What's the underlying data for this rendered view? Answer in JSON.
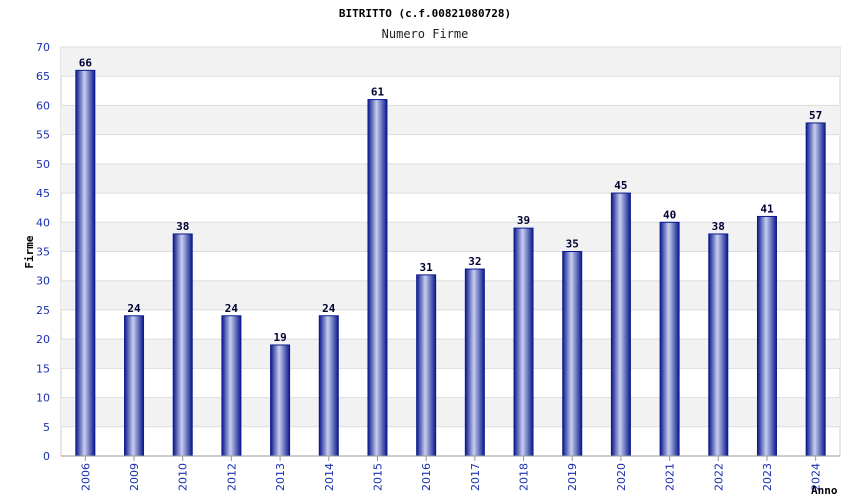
{
  "chart_data": {
    "type": "bar",
    "title": "BITRITTO (c.f.00821080728)",
    "subtitle": "Numero Firme",
    "xlabel": "Anno",
    "ylabel": "Firme",
    "ylim": [
      0,
      70
    ],
    "ytick_step": 5,
    "grid": true,
    "categories": [
      "2006",
      "2009",
      "2010",
      "2012",
      "2013",
      "2014",
      "2015",
      "2016",
      "2017",
      "2018",
      "2019",
      "2020",
      "2021",
      "2022",
      "2023",
      "2024"
    ],
    "values": [
      66,
      24,
      38,
      24,
      19,
      24,
      61,
      31,
      32,
      39,
      35,
      45,
      40,
      38,
      41,
      57
    ],
    "colors": {
      "bar_dark": "#0b1a8c",
      "bar_light": "#c8cef0",
      "band": "#f2f2f2",
      "tick_text": "#1a2fb0"
    }
  }
}
